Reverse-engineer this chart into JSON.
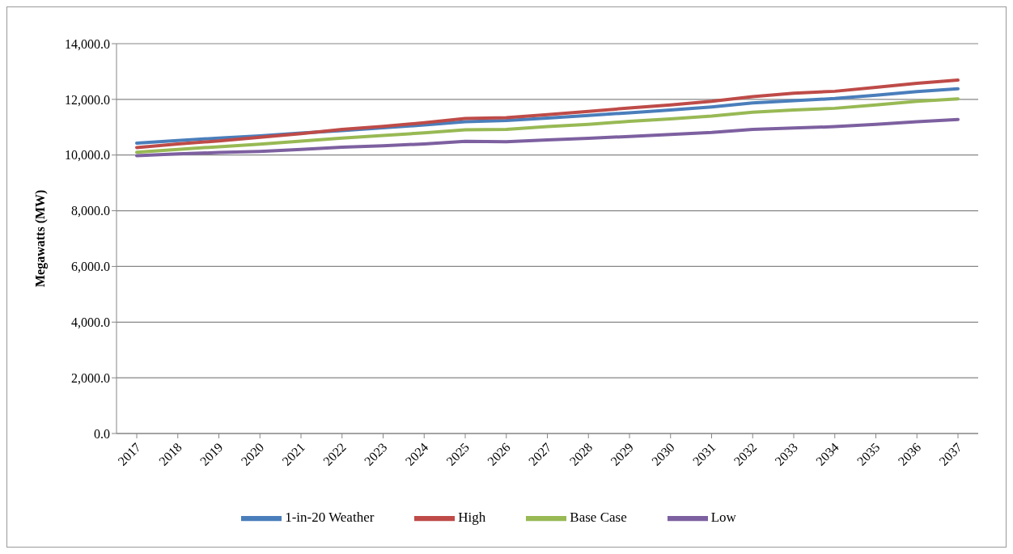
{
  "chart_data": {
    "type": "line",
    "ylabel": "Megawatts (MW)",
    "categories": [
      "2017",
      "2018",
      "2019",
      "2020",
      "2021",
      "2022",
      "2023",
      "2024",
      "2025",
      "2026",
      "2027",
      "2028",
      "2029",
      "2030",
      "2031",
      "2032",
      "2033",
      "2034",
      "2035",
      "2036",
      "2037"
    ],
    "series": [
      {
        "name": "1-in-20 Weather",
        "color": "#4a7ebb",
        "values": [
          10430,
          10520,
          10610,
          10690,
          10790,
          10880,
          10980,
          11080,
          11200,
          11240,
          11330,
          11420,
          11520,
          11620,
          11730,
          11870,
          11950,
          12030,
          12150,
          12280,
          12380
        ]
      },
      {
        "name": "High",
        "color": "#be4b48",
        "values": [
          10270,
          10400,
          10510,
          10640,
          10770,
          10920,
          11030,
          11160,
          11310,
          11340,
          11450,
          11570,
          11690,
          11800,
          11930,
          12100,
          12220,
          12290,
          12430,
          12580,
          12690
        ]
      },
      {
        "name": "Base Case",
        "color": "#98b954",
        "values": [
          10100,
          10200,
          10300,
          10390,
          10500,
          10610,
          10700,
          10800,
          10910,
          10920,
          11020,
          11100,
          11210,
          11300,
          11400,
          11540,
          11620,
          11680,
          11800,
          11930,
          12020
        ]
      },
      {
        "name": "Low",
        "color": "#7d60a0",
        "values": [
          9980,
          10040,
          10090,
          10130,
          10200,
          10280,
          10330,
          10400,
          10490,
          10480,
          10540,
          10600,
          10670,
          10740,
          10810,
          10920,
          10970,
          11020,
          11100,
          11200,
          11280
        ]
      }
    ],
    "ylim": [
      0,
      14000
    ],
    "yticks": [
      {
        "value": 0,
        "label": "0.0"
      },
      {
        "value": 2000,
        "label": "2,000.0"
      },
      {
        "value": 4000,
        "label": "4,000.0"
      },
      {
        "value": 6000,
        "label": "6,000.0"
      },
      {
        "value": 8000,
        "label": "8,000.0"
      },
      {
        "value": 10000,
        "label": "10,000.0"
      },
      {
        "value": 12000,
        "label": "12,000.0"
      },
      {
        "value": 14000,
        "label": "14,000.0"
      }
    ],
    "grid": "y",
    "legend": "bottom",
    "marker": "none",
    "line_style": "solid"
  }
}
